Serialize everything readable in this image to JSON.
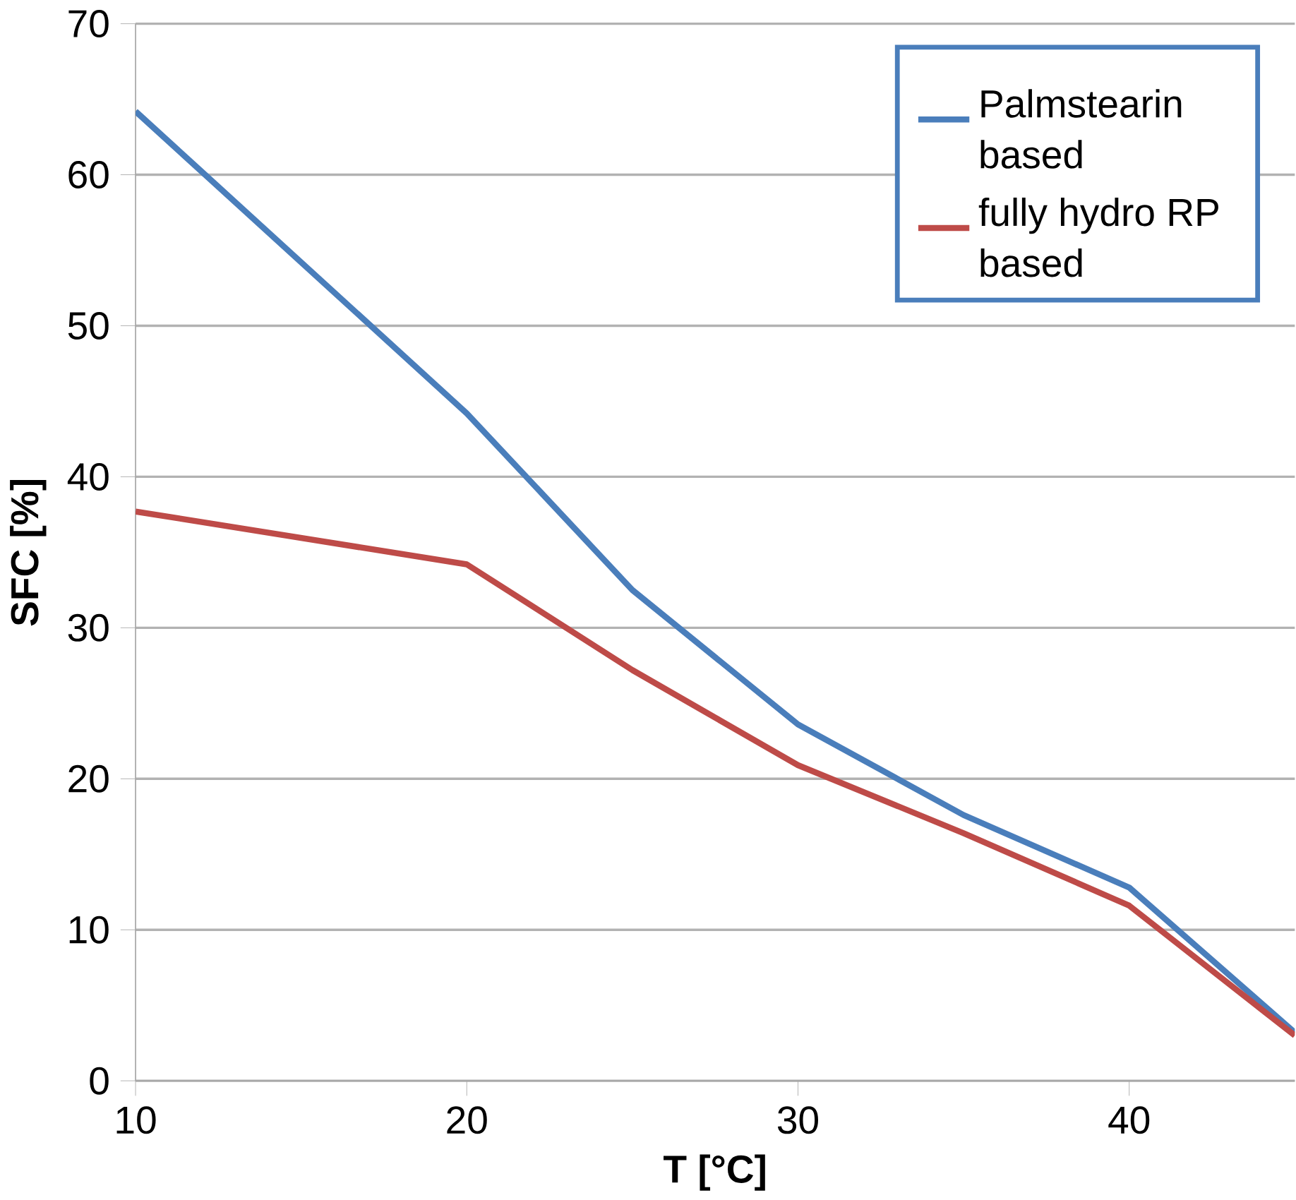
{
  "chart_data": {
    "type": "line",
    "xlabel": "T [°C]",
    "ylabel": "SFC [%]",
    "xlim": [
      10,
      45
    ],
    "ylim": [
      0,
      70
    ],
    "xticks": [
      10,
      20,
      30,
      40
    ],
    "yticks": [
      0,
      10,
      20,
      30,
      40,
      50,
      60,
      70
    ],
    "grid": "y",
    "legend": "top right",
    "line_style": "solid",
    "marker": "none",
    "series": [
      {
        "name": "Palmstearin based",
        "color": "#4a7ebb",
        "x": [
          10,
          20,
          25,
          30,
          35,
          40,
          45
        ],
        "values": [
          64.2,
          44.2,
          32.5,
          23.6,
          17.6,
          12.8,
          3.2
        ]
      },
      {
        "name": "fully hydro RP based",
        "color": "#be4b48",
        "x": [
          10,
          20,
          25,
          30,
          35,
          40,
          45
        ],
        "values": [
          37.7,
          34.2,
          27.2,
          20.9,
          16.4,
          11.6,
          3.0
        ]
      }
    ]
  }
}
